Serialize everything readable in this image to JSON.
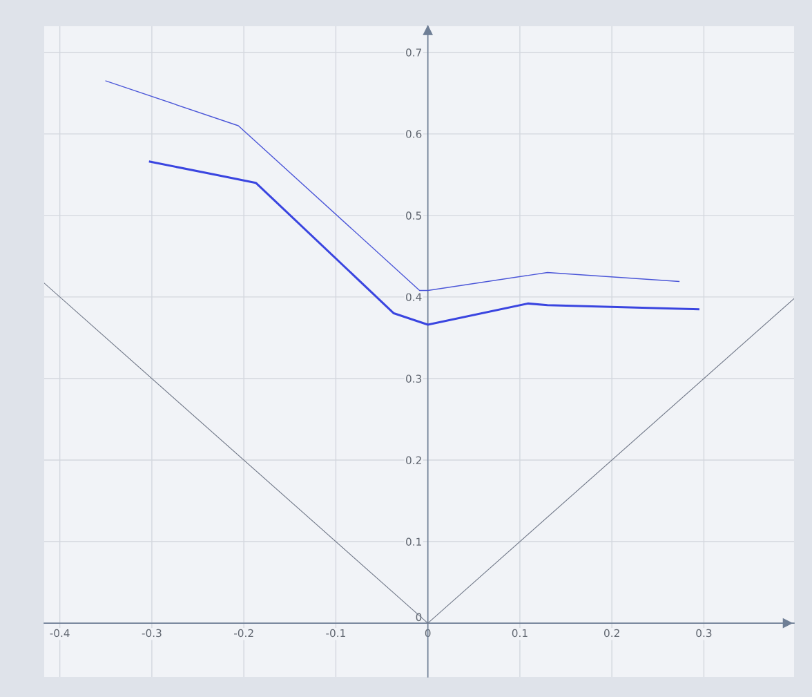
{
  "chart_data": {
    "type": "line",
    "xlim": [
      -0.417,
      0.398
    ],
    "ylim": [
      -0.066,
      0.732
    ],
    "xticks": [
      -0.4,
      -0.3,
      -0.2,
      -0.1,
      0,
      0.1,
      0.2,
      0.3
    ],
    "yticks": [
      0,
      0.1,
      0.2,
      0.3,
      0.4,
      0.5,
      0.6,
      0.7
    ],
    "grid": true,
    "marker": "none",
    "line_style": "solid",
    "series": [
      {
        "color": "#4a55d8",
        "x": [
          -0.35,
          -0.206,
          -0.009,
          0,
          0.13,
          0.273
        ],
        "values": [
          0.665,
          0.61,
          0.408,
          0.408,
          0.43,
          0.419
        ]
      },
      {
        "color": "#3a45e0",
        "x": [
          -0.302,
          -0.187,
          -0.037,
          0,
          0.109,
          0.13,
          0.294
        ],
        "values": [
          0.566,
          0.54,
          0.38,
          0.366,
          0.392,
          0.39,
          0.385
        ]
      },
      {
        "color": "#707888",
        "x": [
          -0.417,
          0,
          0.398
        ],
        "values": [
          0.417,
          0,
          0.398
        ]
      }
    ]
  }
}
